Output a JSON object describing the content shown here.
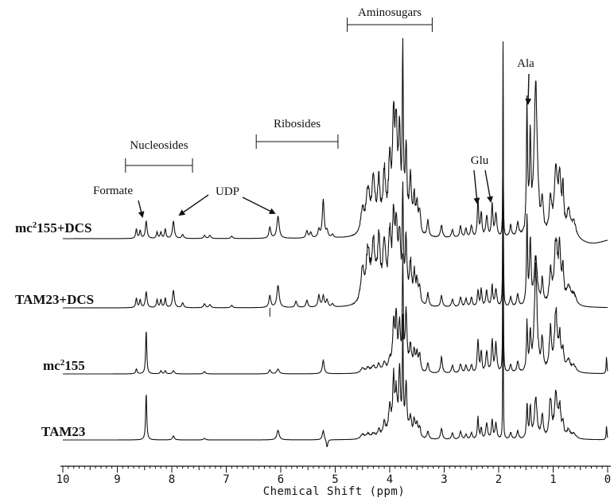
{
  "chart_data": {
    "type": "line",
    "title": "",
    "xlabel": "Chemical Shift (ppm)",
    "ylabel": "",
    "xlim": [
      10,
      0
    ],
    "x_reversed": true,
    "grid": false,
    "x_ticks": [
      10,
      9,
      8,
      7,
      6,
      5,
      4,
      3,
      2,
      1,
      0
    ],
    "series": [
      {
        "name": "mc2155+DCS",
        "label_main": "mc",
        "label_sup": "2",
        "label_rest": "155+DCS",
        "baseline_y": 300,
        "peaks": [
          [
            8.65,
            0.015,
            12
          ],
          [
            8.58,
            0.015,
            10
          ],
          [
            8.47,
            0.018,
            22
          ],
          [
            8.27,
            0.015,
            8
          ],
          [
            8.2,
            0.015,
            8
          ],
          [
            8.12,
            0.015,
            12
          ],
          [
            7.97,
            0.02,
            22
          ],
          [
            7.8,
            0.02,
            5
          ],
          [
            7.4,
            0.02,
            4
          ],
          [
            7.3,
            0.02,
            4
          ],
          [
            6.9,
            0.02,
            3
          ],
          [
            6.2,
            0.02,
            14
          ],
          [
            6.05,
            0.025,
            28
          ],
          [
            5.52,
            0.02,
            9
          ],
          [
            5.45,
            0.02,
            7
          ],
          [
            5.3,
            0.02,
            10
          ],
          [
            5.22,
            0.02,
            48
          ],
          [
            5.15,
            0.02,
            8
          ],
          [
            5.05,
            0.02,
            4
          ],
          [
            4.5,
            0.04,
            30
          ],
          [
            4.4,
            0.04,
            52
          ],
          [
            4.3,
            0.04,
            60
          ],
          [
            4.2,
            0.03,
            58
          ],
          [
            4.1,
            0.03,
            70
          ],
          [
            4.0,
            0.03,
            80
          ],
          [
            3.93,
            0.025,
            130
          ],
          [
            3.88,
            0.025,
            120
          ],
          [
            3.82,
            0.02,
            115
          ],
          [
            3.76,
            0.012,
            225
          ],
          [
            3.7,
            0.02,
            100
          ],
          [
            3.62,
            0.025,
            65
          ],
          [
            3.55,
            0.02,
            42
          ],
          [
            3.5,
            0.02,
            35
          ],
          [
            3.45,
            0.02,
            30
          ],
          [
            3.3,
            0.02,
            20
          ],
          [
            3.05,
            0.02,
            16
          ],
          [
            2.85,
            0.02,
            10
          ],
          [
            2.7,
            0.02,
            14
          ],
          [
            2.6,
            0.02,
            11
          ],
          [
            2.5,
            0.02,
            15
          ],
          [
            2.38,
            0.015,
            44
          ],
          [
            2.32,
            0.015,
            32
          ],
          [
            2.22,
            0.02,
            28
          ],
          [
            2.12,
            0.015,
            44
          ],
          [
            2.05,
            0.02,
            30
          ],
          [
            1.92,
            0.005,
            232
          ],
          [
            1.78,
            0.02,
            14
          ],
          [
            1.65,
            0.02,
            18
          ],
          [
            1.48,
            0.012,
            160
          ],
          [
            1.42,
            0.015,
            120
          ],
          [
            1.32,
            0.035,
            190
          ],
          [
            1.2,
            0.02,
            40
          ],
          [
            1.05,
            0.025,
            40
          ],
          [
            0.95,
            0.035,
            85
          ],
          [
            0.88,
            0.025,
            70
          ],
          [
            0.82,
            0.02,
            50
          ],
          [
            0.72,
            0.04,
            30
          ],
          [
            0.62,
            0.05,
            18
          ]
        ],
        "dip": [
          0.3,
          0.3,
          7
        ]
      },
      {
        "name": "TAM23+DCS",
        "label_main": "TAM23+DCS",
        "label_sup": "",
        "label_rest": "",
        "baseline_y": 387,
        "peaks": [
          [
            8.65,
            0.015,
            12
          ],
          [
            8.58,
            0.015,
            10
          ],
          [
            8.47,
            0.018,
            20
          ],
          [
            8.27,
            0.015,
            10
          ],
          [
            8.2,
            0.015,
            10
          ],
          [
            8.12,
            0.015,
            12
          ],
          [
            7.97,
            0.02,
            22
          ],
          [
            7.8,
            0.02,
            6
          ],
          [
            7.4,
            0.02,
            5
          ],
          [
            7.3,
            0.02,
            4
          ],
          [
            6.9,
            0.02,
            3
          ],
          [
            6.2,
            0.02,
            15
          ],
          [
            6.05,
            0.025,
            28
          ],
          [
            5.72,
            0.02,
            8
          ],
          [
            5.52,
            0.02,
            9
          ],
          [
            5.3,
            0.02,
            15
          ],
          [
            5.22,
            0.02,
            14
          ],
          [
            5.15,
            0.02,
            9
          ],
          [
            5.05,
            0.02,
            4
          ],
          [
            4.5,
            0.04,
            40
          ],
          [
            4.4,
            0.04,
            60
          ],
          [
            4.3,
            0.04,
            70
          ],
          [
            4.2,
            0.03,
            72
          ],
          [
            4.1,
            0.03,
            75
          ],
          [
            4.0,
            0.03,
            80
          ],
          [
            3.93,
            0.025,
            92
          ],
          [
            3.88,
            0.025,
            85
          ],
          [
            3.82,
            0.02,
            80
          ],
          [
            3.76,
            0.012,
            140
          ],
          [
            3.7,
            0.02,
            75
          ],
          [
            3.62,
            0.025,
            50
          ],
          [
            3.55,
            0.02,
            35
          ],
          [
            3.5,
            0.02,
            28
          ],
          [
            3.45,
            0.02,
            22
          ],
          [
            3.3,
            0.02,
            16
          ],
          [
            3.05,
            0.02,
            14
          ],
          [
            2.85,
            0.02,
            10
          ],
          [
            2.7,
            0.02,
            12
          ],
          [
            2.6,
            0.02,
            10
          ],
          [
            2.5,
            0.02,
            12
          ],
          [
            2.38,
            0.015,
            22
          ],
          [
            2.32,
            0.015,
            22
          ],
          [
            2.22,
            0.02,
            20
          ],
          [
            2.12,
            0.015,
            26
          ],
          [
            2.05,
            0.02,
            22
          ],
          [
            1.92,
            0.005,
            330
          ],
          [
            1.78,
            0.02,
            12
          ],
          [
            1.65,
            0.02,
            16
          ],
          [
            1.48,
            0.012,
            110
          ],
          [
            1.42,
            0.015,
            80
          ],
          [
            1.32,
            0.035,
            60
          ],
          [
            1.2,
            0.02,
            30
          ],
          [
            1.05,
            0.025,
            40
          ],
          [
            0.95,
            0.035,
            80
          ],
          [
            0.88,
            0.025,
            60
          ],
          [
            0.82,
            0.02,
            40
          ],
          [
            0.72,
            0.04,
            24
          ],
          [
            0.62,
            0.05,
            14
          ]
        ],
        "dip": [
          6.2,
          0.05,
          0
        ]
      },
      {
        "name": "mc2155",
        "label_main": "mc",
        "label_sup": "2",
        "label_rest": "155",
        "baseline_y": 470,
        "peaks": [
          [
            8.65,
            0.015,
            6
          ],
          [
            8.47,
            0.012,
            56
          ],
          [
            8.2,
            0.015,
            4
          ],
          [
            8.12,
            0.015,
            4
          ],
          [
            7.97,
            0.02,
            4
          ],
          [
            7.4,
            0.02,
            3
          ],
          [
            6.2,
            0.02,
            5
          ],
          [
            6.05,
            0.025,
            6
          ],
          [
            5.22,
            0.02,
            17
          ],
          [
            4.5,
            0.04,
            6
          ],
          [
            4.4,
            0.04,
            6
          ],
          [
            4.3,
            0.04,
            8
          ],
          [
            4.2,
            0.03,
            10
          ],
          [
            4.1,
            0.03,
            12
          ],
          [
            4.0,
            0.03,
            15
          ],
          [
            3.93,
            0.02,
            60
          ],
          [
            3.88,
            0.02,
            65
          ],
          [
            3.82,
            0.02,
            60
          ],
          [
            3.76,
            0.01,
            135
          ],
          [
            3.7,
            0.02,
            75
          ],
          [
            3.62,
            0.025,
            30
          ],
          [
            3.55,
            0.02,
            25
          ],
          [
            3.5,
            0.02,
            24
          ],
          [
            3.45,
            0.02,
            20
          ],
          [
            3.3,
            0.02,
            12
          ],
          [
            3.05,
            0.02,
            20
          ],
          [
            2.85,
            0.02,
            10
          ],
          [
            2.7,
            0.02,
            12
          ],
          [
            2.6,
            0.02,
            10
          ],
          [
            2.5,
            0.02,
            10
          ],
          [
            2.38,
            0.015,
            44
          ],
          [
            2.32,
            0.015,
            26
          ],
          [
            2.22,
            0.02,
            26
          ],
          [
            2.12,
            0.015,
            40
          ],
          [
            2.05,
            0.02,
            36
          ],
          [
            1.92,
            0.005,
            330
          ],
          [
            1.78,
            0.02,
            10
          ],
          [
            1.65,
            0.02,
            14
          ],
          [
            1.48,
            0.012,
            62
          ],
          [
            1.42,
            0.015,
            48
          ],
          [
            1.32,
            0.03,
            130
          ],
          [
            1.2,
            0.02,
            40
          ],
          [
            1.05,
            0.025,
            50
          ],
          [
            0.95,
            0.03,
            72
          ],
          [
            0.88,
            0.025,
            40
          ],
          [
            0.82,
            0.02,
            24
          ],
          [
            0.72,
            0.04,
            14
          ],
          [
            0.62,
            0.05,
            8
          ],
          [
            0.02,
            0.008,
            22
          ]
        ],
        "dip": [
          0.3,
          0.3,
          0
        ]
      },
      {
        "name": "TAM23",
        "label_main": "TAM23",
        "label_sup": "",
        "label_rest": "",
        "baseline_y": 553,
        "peaks": [
          [
            8.47,
            0.012,
            60
          ],
          [
            7.97,
            0.02,
            5
          ],
          [
            7.4,
            0.02,
            2
          ],
          [
            6.05,
            0.025,
            12
          ],
          [
            5.22,
            0.02,
            12
          ],
          [
            5.15,
            0.015,
            -10
          ],
          [
            4.5,
            0.04,
            6
          ],
          [
            4.4,
            0.04,
            6
          ],
          [
            4.3,
            0.04,
            6
          ],
          [
            4.2,
            0.03,
            10
          ],
          [
            4.1,
            0.03,
            18
          ],
          [
            4.0,
            0.03,
            36
          ],
          [
            3.93,
            0.02,
            70
          ],
          [
            3.88,
            0.02,
            50
          ],
          [
            3.82,
            0.02,
            80
          ],
          [
            3.76,
            0.01,
            135
          ],
          [
            3.7,
            0.02,
            65
          ],
          [
            3.62,
            0.025,
            25
          ],
          [
            3.55,
            0.02,
            20
          ],
          [
            3.5,
            0.02,
            16
          ],
          [
            3.45,
            0.02,
            14
          ],
          [
            3.3,
            0.02,
            10
          ],
          [
            3.05,
            0.02,
            14
          ],
          [
            2.85,
            0.02,
            8
          ],
          [
            2.7,
            0.02,
            10
          ],
          [
            2.6,
            0.02,
            6
          ],
          [
            2.5,
            0.02,
            8
          ],
          [
            2.38,
            0.015,
            26
          ],
          [
            2.32,
            0.015,
            14
          ],
          [
            2.22,
            0.02,
            20
          ],
          [
            2.12,
            0.015,
            24
          ],
          [
            2.05,
            0.02,
            20
          ],
          [
            1.92,
            0.005,
            230
          ],
          [
            1.78,
            0.02,
            8
          ],
          [
            1.65,
            0.02,
            10
          ],
          [
            1.48,
            0.012,
            46
          ],
          [
            1.42,
            0.015,
            42
          ],
          [
            1.32,
            0.03,
            50
          ],
          [
            1.2,
            0.02,
            30
          ],
          [
            1.05,
            0.025,
            50
          ],
          [
            0.95,
            0.03,
            54
          ],
          [
            0.88,
            0.025,
            36
          ],
          [
            0.82,
            0.02,
            16
          ],
          [
            0.72,
            0.04,
            10
          ],
          [
            0.62,
            0.05,
            6
          ],
          [
            0.02,
            0.008,
            18
          ]
        ],
        "dip": [
          0.3,
          0.3,
          0
        ]
      }
    ],
    "annotations": {
      "brackets": [
        {
          "label": "Aminosugars",
          "x_start": 4.78,
          "x_end": 3.22
        },
        {
          "label": "Nucleosides",
          "x_start": 8.85,
          "x_end": 7.62
        },
        {
          "label": "Ribosides",
          "x_start": 6.45,
          "x_end": 4.95
        }
      ],
      "arrows": [
        {
          "label": "Formate",
          "label_ppm": 8.85,
          "target_ppm": 8.5
        },
        {
          "label": "UDP",
          "label_ppm": 7.25,
          "target_ppm": [
            7.97,
            6.05
          ]
        },
        {
          "label": "Glu",
          "label_ppm": 2.27,
          "target_ppm": [
            2.38,
            2.12
          ]
        },
        {
          "label": "Ala",
          "label_ppm": 1.4,
          "target_ppm": 1.48
        }
      ]
    }
  }
}
